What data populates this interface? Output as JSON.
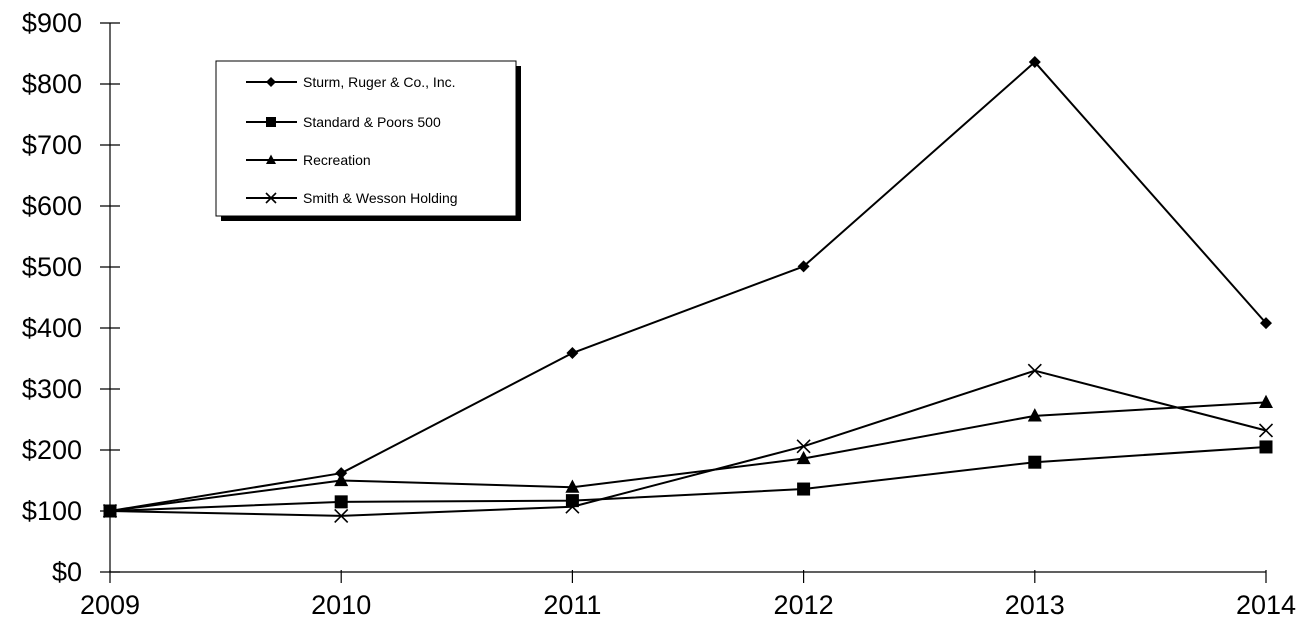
{
  "chart_data": {
    "type": "line",
    "title": "",
    "xlabel": "",
    "ylabel": "",
    "x": [
      "2009",
      "2010",
      "2011",
      "2012",
      "2013",
      "2014"
    ],
    "ylim": [
      0,
      900
    ],
    "yticks": [
      0,
      100,
      200,
      300,
      400,
      500,
      600,
      700,
      800,
      900
    ],
    "ytick_labels": [
      "$0",
      "$100",
      "$200",
      "$300",
      "$400",
      "$500",
      "$600",
      "$700",
      "$800",
      "$900"
    ],
    "grid": false,
    "legend_position": "top-left",
    "series": [
      {
        "name": "Sturm, Ruger & Co., Inc.",
        "marker": "diamond",
        "values": [
          100,
          162,
          359,
          501,
          836,
          408
        ]
      },
      {
        "name": "Standard & Poors 500",
        "marker": "square",
        "values": [
          100,
          115,
          117,
          136,
          180,
          205
        ]
      },
      {
        "name": "Recreation",
        "marker": "triangle",
        "values": [
          100,
          150,
          139,
          186,
          256,
          278
        ]
      },
      {
        "name": "Smith & Wesson Holding",
        "marker": "x",
        "values": [
          100,
          92,
          107,
          206,
          330,
          232
        ]
      }
    ],
    "line_color": "#000000"
  }
}
